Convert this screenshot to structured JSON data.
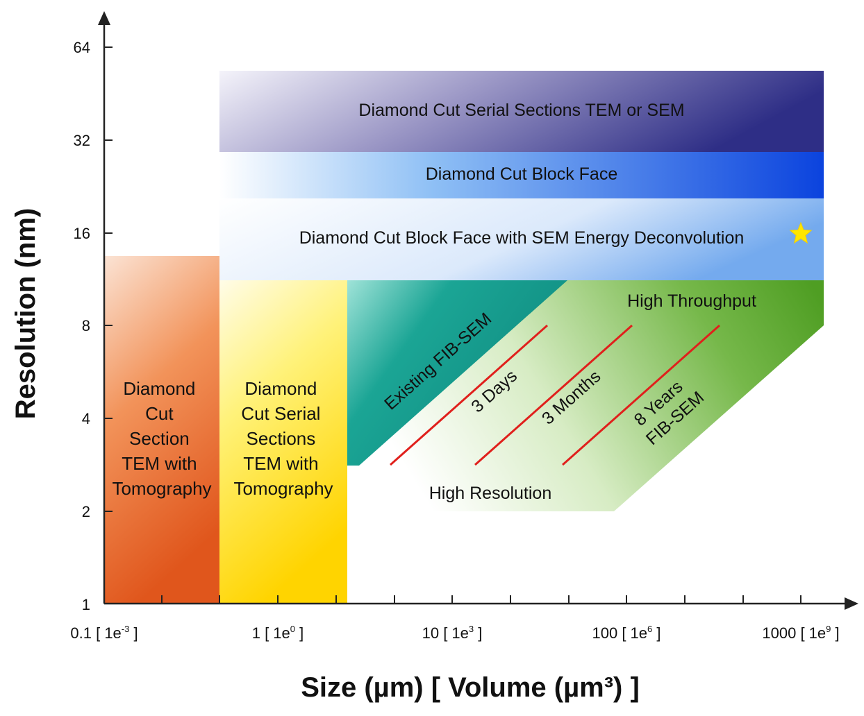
{
  "axes": {
    "y_title": "Resolution (nm)",
    "x_title": "Size (µm) [ Volume (µm³) ]",
    "y_ticks": [
      "64",
      "32",
      "16",
      "8",
      "4",
      "2",
      "1"
    ],
    "x_ticks": [
      {
        "main": "0.1 [ 1e",
        "exp": "-3",
        "end": " ]"
      },
      {
        "main": "1 [ 1e",
        "exp": "0",
        "end": " ]"
      },
      {
        "main": "10 [ 1e",
        "exp": "3",
        "end": " ]"
      },
      {
        "main": "100 [ 1e",
        "exp": "6",
        "end": " ]"
      },
      {
        "main": "1000 [ 1e",
        "exp": "9",
        "end": " ]"
      }
    ]
  },
  "bands": {
    "serial_sections": "Diamond Cut Serial Sections TEM or SEM",
    "block_face": "Diamond Cut Block Face",
    "energy_deconv": "Diamond Cut Block Face with SEM Energy Deconvolution"
  },
  "columns": {
    "tomography_single": [
      "Diamond",
      "Cut",
      "Section",
      "TEM with",
      "Tomography"
    ],
    "tomography_serial": [
      "Diamond",
      "Cut Serial",
      "Sections",
      "TEM with",
      "Tomography"
    ]
  },
  "regions": {
    "existing_fib": "Existing FIB-SEM",
    "high_throughput": "High Throughput",
    "high_resolution": "High Resolution",
    "days": "3 Days",
    "months": "3 Months",
    "years_line1": "8 Years",
    "years_line2": "FIB-SEM"
  },
  "colors": {
    "serial_band_dark": "#2e2e86",
    "block_face_blue": "#0b4fe0",
    "deconv_blue": "#7fb2ef",
    "orange": "#e8561a",
    "yellow": "#ffe600",
    "teal": "#11988a",
    "green": "#5aa52c",
    "time_lines": "#e0201c",
    "star": "#ffe600"
  },
  "icons": {
    "star": "star-icon"
  }
}
